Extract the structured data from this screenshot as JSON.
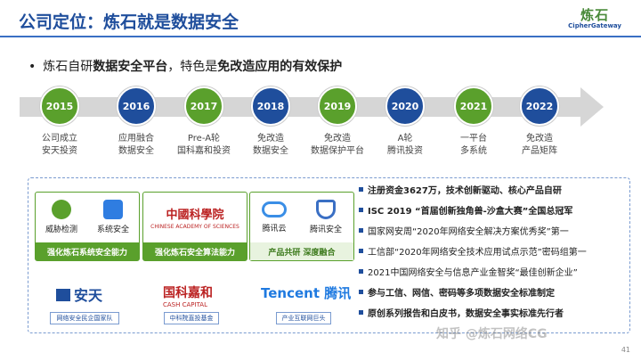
{
  "header": {
    "title": "公司定位：炼石就是数据安全"
  },
  "logo": {
    "cn": "炼石",
    "en": "CipherGateway"
  },
  "bullet": {
    "dot": "•",
    "prefix": "炼石自研",
    "b1": "数据安全平台",
    "mid": "，特色是",
    "b2": "免改造应用的有效保护"
  },
  "timeline": [
    {
      "year": "2015",
      "color": "green",
      "l1": "公司成立",
      "l2": "安天投资"
    },
    {
      "year": "2016",
      "color": "blue",
      "l1": "应用融合",
      "l2": "数据安全"
    },
    {
      "year": "2017",
      "color": "green",
      "l1": "Pre-A轮",
      "l2": "国科嘉和投资"
    },
    {
      "year": "2018",
      "color": "blue",
      "l1": "免改造",
      "l2": "数据安全"
    },
    {
      "year": "2019",
      "color": "green",
      "l1": "免改造",
      "l2": "数据保护平台"
    },
    {
      "year": "2020",
      "color": "blue",
      "l1": "A轮",
      "l2": "腾讯投资"
    },
    {
      "year": "2021",
      "color": "green",
      "l1": "一平台",
      "l2": "多系统"
    },
    {
      "year": "2022",
      "color": "blue",
      "l1": "免改造",
      "l2": "产品矩阵"
    }
  ],
  "cards": [
    {
      "icon1": "威胁检测",
      "icon2": "系统安全",
      "foot": "强化炼石系统安全能力"
    },
    {
      "mark": "中國科學院",
      "sub": "CHINESE ACADEMY OF SCIENCES",
      "foot": "强化炼石安全算法能力"
    },
    {
      "icon1": "腾讯云",
      "icon2": "腾讯安全",
      "foot": "产品共研 深度融合"
    }
  ],
  "brands": {
    "antian": "安天",
    "cash": "国科嘉和",
    "cash_en": "CASH CAPITAL",
    "tencent": "Tencent 腾讯"
  },
  "tags": [
    "网络安全民企国家队",
    "中科院直投基金",
    "产业互联网巨头"
  ],
  "facts": [
    {
      "text": "注册资金3627万，技术创新驱动、核心产品自研",
      "bold": true
    },
    {
      "text": "ISC 2019 “首届创新独角兽-沙盒大赛”全国总冠军",
      "bold": true
    },
    {
      "text": "国家网安周“2020年网络安全解决方案优秀奖”第一",
      "bold": false
    },
    {
      "text": "工信部“2020年网络安全技术应用试点示范”密码组第一",
      "bold": false
    },
    {
      "text": "2021中国网络安全与信息产业金智奖“最佳创新企业”",
      "bold": false
    },
    {
      "text": "参与工信、网信、密码等多项数据安全标准制定",
      "bold": true
    },
    {
      "text": "原创系列报告和白皮书，数据安全事实标准先行者",
      "bold": true
    }
  ],
  "page_number": "41",
  "watermark": "知乎 @炼石网络CG",
  "colors": {
    "brand_blue": "#1f4e9c",
    "brand_green": "#5aa02c"
  }
}
